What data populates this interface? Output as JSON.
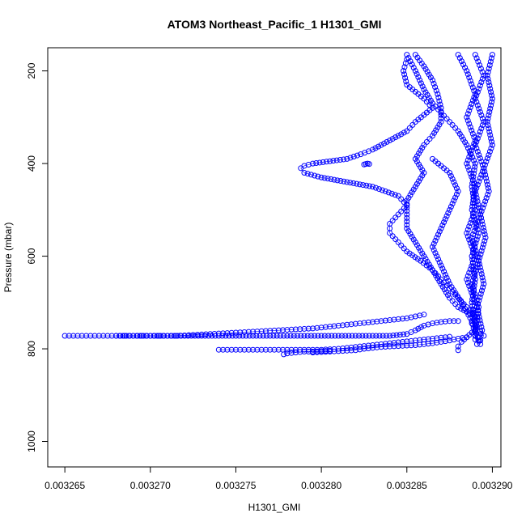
{
  "chart_data": {
    "type": "scatter",
    "title": "ATOM3 Northeast_Pacific_1 H1301_GMI",
    "xlabel": "H1301_GMI",
    "ylabel": "Pressure (mbar)",
    "xlim": [
      0.003264,
      0.0032905
    ],
    "ylim": [
      1055,
      150
    ],
    "y_axis_inverted": true,
    "grid": false,
    "marker": "open-circle",
    "color": "#0000ff",
    "x_ticks": [
      0.003265,
      0.00327,
      0.003275,
      0.00328,
      0.003285,
      0.00329
    ],
    "x_tick_labels": [
      "0.003265",
      "0.003270",
      "0.003275",
      "0.003280",
      "0.003285",
      "0.003290"
    ],
    "y_ticks": [
      200,
      400,
      600,
      800,
      1000
    ],
    "y_tick_labels": [
      "200",
      "400",
      "600",
      "800",
      "1000"
    ],
    "series": [
      {
        "values": [
          [
            0.003285,
            165
          ],
          [
            0.0032855,
            200
          ],
          [
            0.003286,
            240
          ],
          [
            0.0032865,
            270
          ],
          [
            0.003287,
            290
          ],
          [
            0.0032875,
            310
          ],
          [
            0.003288,
            330
          ],
          [
            0.0032885,
            360
          ],
          [
            0.003289,
            400
          ],
          [
            0.0032888,
            450
          ],
          [
            0.003289,
            500
          ],
          [
            0.0032885,
            550
          ],
          [
            0.003289,
            600
          ],
          [
            0.0032885,
            650
          ],
          [
            0.003289,
            700
          ],
          [
            0.0032888,
            740
          ]
        ]
      },
      {
        "values": [
          [
            0.003285,
            175
          ],
          [
            0.0032848,
            200
          ],
          [
            0.003285,
            230
          ],
          [
            0.003286,
            260
          ],
          [
            0.0032865,
            280
          ],
          [
            0.0032855,
            310
          ],
          [
            0.003285,
            330
          ],
          [
            0.003284,
            350
          ],
          [
            0.0032835,
            360
          ],
          [
            0.003283,
            370
          ],
          [
            0.0032823,
            380
          ],
          [
            0.0032815,
            390
          ],
          [
            0.0032805,
            395
          ],
          [
            0.0032795,
            400
          ],
          [
            0.003279,
            405
          ],
          [
            0.0032788,
            410
          ],
          [
            0.003279,
            420
          ],
          [
            0.00328,
            430
          ],
          [
            0.0032815,
            440
          ],
          [
            0.003283,
            450
          ],
          [
            0.0032845,
            470
          ],
          [
            0.003285,
            490
          ],
          [
            0.0032845,
            510
          ],
          [
            0.003284,
            530
          ],
          [
            0.003284,
            550
          ],
          [
            0.0032845,
            570
          ],
          [
            0.003285,
            590
          ],
          [
            0.0032858,
            610
          ],
          [
            0.0032865,
            630
          ],
          [
            0.003287,
            650
          ],
          [
            0.0032875,
            670
          ],
          [
            0.003288,
            690
          ],
          [
            0.0032885,
            710
          ],
          [
            0.003289,
            730
          ]
        ]
      },
      {
        "values": [
          [
            0.0032825,
            402
          ],
          [
            0.0032826,
            401
          ],
          [
            0.0032827,
            400
          ],
          [
            0.0032828,
            401
          ]
        ]
      },
      {
        "values": [
          [
            0.0032855,
            165
          ],
          [
            0.003286,
            190
          ],
          [
            0.0032865,
            220
          ],
          [
            0.0032868,
            250
          ],
          [
            0.003287,
            280
          ],
          [
            0.003287,
            310
          ],
          [
            0.0032865,
            340
          ],
          [
            0.003286,
            360
          ],
          [
            0.0032855,
            390
          ],
          [
            0.003286,
            420
          ],
          [
            0.0032855,
            450
          ],
          [
            0.003285,
            480
          ],
          [
            0.003285,
            510
          ],
          [
            0.003285,
            540
          ],
          [
            0.0032855,
            570
          ],
          [
            0.003286,
            600
          ],
          [
            0.0032865,
            630
          ],
          [
            0.003287,
            660
          ],
          [
            0.0032875,
            690
          ],
          [
            0.003288,
            710
          ],
          [
            0.003289,
            730
          ]
        ]
      },
      {
        "values": [
          [
            0.003288,
            165
          ],
          [
            0.0032885,
            200
          ],
          [
            0.003289,
            250
          ],
          [
            0.0032885,
            300
          ],
          [
            0.003289,
            350
          ],
          [
            0.0032885,
            400
          ],
          [
            0.003289,
            450
          ],
          [
            0.0032888,
            500
          ],
          [
            0.0032892,
            550
          ],
          [
            0.0032888,
            600
          ],
          [
            0.003289,
            650
          ],
          [
            0.0032888,
            700
          ],
          [
            0.003289,
            750
          ],
          [
            0.003289,
            780
          ]
        ]
      },
      {
        "values": [
          [
            0.003289,
            165
          ],
          [
            0.0032895,
            210
          ],
          [
            0.003289,
            260
          ],
          [
            0.0032895,
            310
          ],
          [
            0.003289,
            360
          ],
          [
            0.0032895,
            410
          ],
          [
            0.003289,
            460
          ],
          [
            0.0032893,
            510
          ],
          [
            0.0032888,
            560
          ],
          [
            0.0032892,
            610
          ],
          [
            0.0032888,
            660
          ],
          [
            0.0032892,
            710
          ],
          [
            0.003289,
            760
          ],
          [
            0.0032893,
            790
          ]
        ]
      },
      {
        "values": [
          [
            0.00329,
            165
          ],
          [
            0.0032897,
            210
          ],
          [
            0.00329,
            260
          ],
          [
            0.0032897,
            310
          ],
          [
            0.00329,
            360
          ],
          [
            0.0032895,
            410
          ],
          [
            0.0032898,
            460
          ],
          [
            0.0032893,
            510
          ],
          [
            0.0032896,
            560
          ],
          [
            0.0032892,
            610
          ],
          [
            0.0032895,
            660
          ],
          [
            0.0032891,
            710
          ],
          [
            0.0032894,
            760
          ],
          [
            0.0032891,
            790
          ]
        ]
      },
      {
        "values": [
          [
            0.0032865,
            390
          ],
          [
            0.0032875,
            420
          ],
          [
            0.003288,
            460
          ],
          [
            0.0032875,
            500
          ],
          [
            0.003287,
            540
          ],
          [
            0.0032865,
            580
          ],
          [
            0.003287,
            620
          ],
          [
            0.0032875,
            660
          ],
          [
            0.0032882,
            700
          ],
          [
            0.0032888,
            740
          ],
          [
            0.003289,
            770
          ]
        ]
      },
      {
        "values": [
          [
            0.003265,
            772
          ],
          [
            0.0032655,
            772
          ],
          [
            0.003266,
            772
          ],
          [
            0.0032665,
            772
          ],
          [
            0.003267,
            772
          ],
          [
            0.0032675,
            772
          ],
          [
            0.003268,
            772
          ],
          [
            0.0032685,
            772
          ],
          [
            0.003269,
            772
          ],
          [
            0.0032695,
            772
          ],
          [
            0.00327,
            772
          ],
          [
            0.0032705,
            772
          ],
          [
            0.003271,
            772
          ],
          [
            0.0032715,
            772
          ],
          [
            0.003272,
            771
          ],
          [
            0.0032725,
            770
          ],
          [
            0.003273,
            769
          ],
          [
            0.0032735,
            768
          ],
          [
            0.003274,
            767
          ],
          [
            0.0032745,
            766
          ],
          [
            0.003275,
            765
          ],
          [
            0.0032755,
            764
          ],
          [
            0.003276,
            763
          ],
          [
            0.0032765,
            762
          ],
          [
            0.003277,
            761
          ],
          [
            0.0032775,
            760
          ],
          [
            0.003278,
            759
          ],
          [
            0.0032785,
            758
          ],
          [
            0.003279,
            757
          ],
          [
            0.0032795,
            756
          ],
          [
            0.00328,
            754
          ],
          [
            0.0032805,
            752
          ],
          [
            0.003281,
            750
          ],
          [
            0.0032815,
            748
          ],
          [
            0.003282,
            746
          ],
          [
            0.0032825,
            744
          ],
          [
            0.003283,
            742
          ],
          [
            0.0032835,
            740
          ],
          [
            0.003284,
            738
          ],
          [
            0.0032845,
            736
          ],
          [
            0.003285,
            734
          ],
          [
            0.0032855,
            730
          ],
          [
            0.003286,
            726
          ]
        ]
      },
      {
        "values": [
          [
            0.003268,
            772
          ],
          [
            0.003269,
            772
          ],
          [
            0.00327,
            772
          ],
          [
            0.003271,
            772
          ],
          [
            0.003272,
            772
          ],
          [
            0.003273,
            772
          ],
          [
            0.003274,
            772
          ],
          [
            0.003275,
            772
          ],
          [
            0.003276,
            772
          ],
          [
            0.003277,
            772
          ],
          [
            0.003278,
            772
          ],
          [
            0.003279,
            772
          ],
          [
            0.0032802,
            772
          ],
          [
            0.003281,
            772
          ],
          [
            0.003282,
            772
          ],
          [
            0.003283,
            772
          ],
          [
            0.003284,
            772
          ],
          [
            0.003285,
            768
          ],
          [
            0.0032855,
            760
          ],
          [
            0.003286,
            750
          ],
          [
            0.0032865,
            745
          ],
          [
            0.003287,
            742
          ],
          [
            0.0032875,
            740
          ],
          [
            0.003288,
            740
          ]
        ]
      },
      {
        "values": [
          [
            0.003274,
            802
          ],
          [
            0.0032745,
            802
          ],
          [
            0.003275,
            802
          ],
          [
            0.0032755,
            802
          ],
          [
            0.003276,
            802
          ],
          [
            0.0032765,
            802
          ],
          [
            0.003277,
            802
          ],
          [
            0.0032775,
            802
          ],
          [
            0.003278,
            802
          ],
          [
            0.0032785,
            802
          ],
          [
            0.003279,
            802
          ],
          [
            0.0032795,
            802
          ],
          [
            0.00328,
            802
          ],
          [
            0.0032805,
            801
          ],
          [
            0.003281,
            800
          ],
          [
            0.0032815,
            798
          ],
          [
            0.003282,
            796
          ],
          [
            0.0032825,
            794
          ],
          [
            0.003283,
            792
          ],
          [
            0.0032835,
            790
          ],
          [
            0.003284,
            788
          ],
          [
            0.0032845,
            786
          ],
          [
            0.003285,
            784
          ],
          [
            0.0032855,
            782
          ],
          [
            0.003286,
            780
          ],
          [
            0.0032865,
            778
          ],
          [
            0.003287,
            776
          ],
          [
            0.0032875,
            774
          ]
        ]
      },
      {
        "values": [
          [
            0.0032778,
            812
          ],
          [
            0.003278,
            810
          ],
          [
            0.0032785,
            808
          ],
          [
            0.003279,
            806
          ],
          [
            0.0032795,
            806
          ],
          [
            0.00328,
            805
          ],
          [
            0.0032805,
            804
          ]
        ]
      },
      {
        "values": [
          [
            0.0032795,
            808
          ],
          [
            0.00328,
            807
          ],
          [
            0.0032805,
            806
          ],
          [
            0.003281,
            805
          ],
          [
            0.0032815,
            804
          ],
          [
            0.003282,
            803
          ],
          [
            0.0032825,
            800
          ],
          [
            0.003283,
            798
          ],
          [
            0.0032835,
            796
          ],
          [
            0.003284,
            795
          ],
          [
            0.0032845,
            794
          ],
          [
            0.003285,
            793
          ],
          [
            0.0032855,
            792
          ],
          [
            0.003286,
            790
          ],
          [
            0.0032865,
            788
          ],
          [
            0.003287,
            785
          ],
          [
            0.0032875,
            782
          ],
          [
            0.003288,
            778
          ],
          [
            0.0032885,
            775
          ]
        ]
      },
      {
        "values": [
          [
            0.003288,
            803
          ],
          [
            0.003288,
            795
          ],
          [
            0.0032882,
            785
          ],
          [
            0.0032885,
            775
          ],
          [
            0.0032888,
            765
          ],
          [
            0.003289,
            755
          ],
          [
            0.0032888,
            745
          ]
        ]
      },
      {
        "values": [
          [
            0.0032893,
            782
          ],
          [
            0.0032895,
            772
          ],
          [
            0.0032893,
            762
          ],
          [
            0.0032891,
            752
          ],
          [
            0.003289,
            742
          ]
        ]
      }
    ]
  }
}
